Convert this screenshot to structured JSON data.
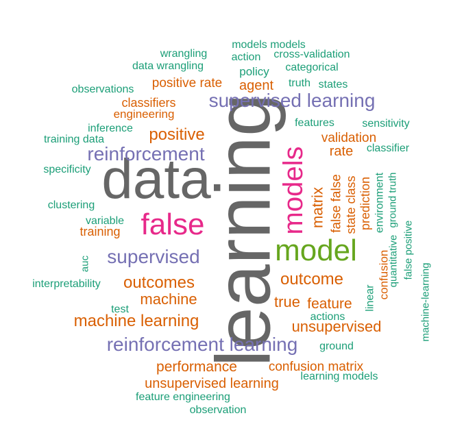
{
  "colors": {
    "teal": "#1B9E77",
    "orange": "#D95F02",
    "purple": "#7570B3",
    "magenta": "#E7298A",
    "green": "#66A61E",
    "gray": "#666666"
  },
  "words": [
    {
      "text": "learning",
      "color": "gray"
    },
    {
      "text": "data",
      "color": "gray"
    },
    {
      "text": "model",
      "color": "green"
    },
    {
      "text": "models",
      "color": "magenta"
    },
    {
      "text": "false",
      "color": "magenta"
    },
    {
      "text": "supervised learning",
      "color": "purple"
    },
    {
      "text": "reinforcement learning",
      "color": "purple"
    },
    {
      "text": "reinforcement",
      "color": "purple"
    },
    {
      "text": "supervised",
      "color": "purple"
    },
    {
      "text": "positive",
      "color": "orange"
    },
    {
      "text": "outcomes",
      "color": "orange"
    },
    {
      "text": "outcome",
      "color": "orange"
    },
    {
      "text": "machine learning",
      "color": "orange"
    },
    {
      "text": "machine",
      "color": "orange"
    },
    {
      "text": "unsupervised",
      "color": "orange"
    },
    {
      "text": "true",
      "color": "orange"
    },
    {
      "text": "feature",
      "color": "orange"
    },
    {
      "text": "matrix",
      "color": "orange"
    },
    {
      "text": "performance",
      "color": "orange"
    },
    {
      "text": "unsupervised learning",
      "color": "orange"
    },
    {
      "text": "confusion matrix",
      "color": "orange"
    },
    {
      "text": "positive rate",
      "color": "orange"
    },
    {
      "text": "agent",
      "color": "orange"
    },
    {
      "text": "classifiers",
      "color": "orange"
    },
    {
      "text": "engineering",
      "color": "orange"
    },
    {
      "text": "validation",
      "color": "orange"
    },
    {
      "text": "rate",
      "color": "orange"
    },
    {
      "text": "false false",
      "color": "orange"
    },
    {
      "text": "state class",
      "color": "orange"
    },
    {
      "text": "prediction",
      "color": "orange"
    },
    {
      "text": "confusion",
      "color": "orange"
    },
    {
      "text": "training",
      "color": "orange"
    },
    {
      "text": "environment",
      "color": "teal"
    },
    {
      "text": "ground truth",
      "color": "teal"
    },
    {
      "text": "quantitative",
      "color": "teal"
    },
    {
      "text": "linear",
      "color": "teal"
    },
    {
      "text": "false positive",
      "color": "teal"
    },
    {
      "text": "machine-learning",
      "color": "teal"
    },
    {
      "text": "models models",
      "color": "teal"
    },
    {
      "text": "wrangling",
      "color": "teal"
    },
    {
      "text": "action",
      "color": "teal"
    },
    {
      "text": "cross-validation",
      "color": "teal"
    },
    {
      "text": "data wrangling",
      "color": "teal"
    },
    {
      "text": "categorical",
      "color": "teal"
    },
    {
      "text": "policy",
      "color": "teal"
    },
    {
      "text": "observations",
      "color": "teal"
    },
    {
      "text": "truth",
      "color": "teal"
    },
    {
      "text": "states",
      "color": "teal"
    },
    {
      "text": "features",
      "color": "teal"
    },
    {
      "text": "sensitivity",
      "color": "teal"
    },
    {
      "text": "inference",
      "color": "teal"
    },
    {
      "text": "training data",
      "color": "teal"
    },
    {
      "text": "classifier",
      "color": "teal"
    },
    {
      "text": "specificity",
      "color": "teal"
    },
    {
      "text": "clustering",
      "color": "teal"
    },
    {
      "text": "variable",
      "color": "teal"
    },
    {
      "text": "auc",
      "color": "teal"
    },
    {
      "text": "interpretability",
      "color": "teal"
    },
    {
      "text": "test",
      "color": "teal"
    },
    {
      "text": "actions",
      "color": "teal"
    },
    {
      "text": "ground",
      "color": "teal"
    },
    {
      "text": "learning models",
      "color": "teal"
    },
    {
      "text": "feature engineering",
      "color": "teal"
    },
    {
      "text": "observation",
      "color": "teal"
    }
  ]
}
